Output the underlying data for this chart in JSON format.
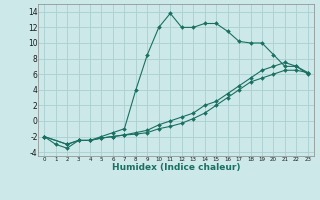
{
  "xlabel": "Humidex (Indice chaleur)",
  "bg_color": "#cce8e8",
  "line_color": "#1a7060",
  "grid_color": "#aad0d0",
  "xlim": [
    -0.5,
    23.5
  ],
  "ylim": [
    -4.5,
    15
  ],
  "xticks": [
    0,
    1,
    2,
    3,
    4,
    5,
    6,
    7,
    8,
    9,
    10,
    11,
    12,
    13,
    14,
    15,
    16,
    17,
    18,
    19,
    20,
    21,
    22,
    23
  ],
  "yticks": [
    -4,
    -2,
    0,
    2,
    4,
    6,
    8,
    10,
    12,
    14
  ],
  "line1_x": [
    0,
    1,
    2,
    3,
    4,
    5,
    6,
    7,
    8,
    9,
    10,
    11,
    12,
    13,
    14,
    15,
    16,
    17,
    18,
    19,
    20,
    21,
    22,
    23
  ],
  "line1_y": [
    -2,
    -3,
    -3.5,
    -2.5,
    -2.5,
    -2,
    -1.5,
    -1,
    4,
    8.5,
    12,
    13.8,
    12,
    12,
    12.5,
    12.5,
    11.5,
    10.2,
    10,
    10,
    8.5,
    7,
    7,
    6
  ],
  "line2_x": [
    0,
    2,
    3,
    4,
    5,
    6,
    7,
    8,
    9,
    10,
    11,
    12,
    13,
    14,
    15,
    16,
    17,
    18,
    19,
    20,
    21,
    22,
    23
  ],
  "line2_y": [
    -2,
    -3,
    -2.5,
    -2.5,
    -2.2,
    -2,
    -1.8,
    -1.7,
    -1.5,
    -1.0,
    -0.7,
    -0.3,
    0.3,
    1,
    2,
    3,
    4,
    5,
    5.5,
    6,
    6.5,
    6.5,
    6.2
  ],
  "line3_x": [
    0,
    2,
    3,
    4,
    5,
    6,
    7,
    8,
    9,
    10,
    11,
    12,
    13,
    14,
    15,
    16,
    17,
    18,
    19,
    20,
    21,
    22,
    23
  ],
  "line3_y": [
    -2,
    -3,
    -2.5,
    -2.5,
    -2.2,
    -2,
    -1.8,
    -1.5,
    -1.2,
    -0.5,
    0,
    0.5,
    1,
    2,
    2.5,
    3.5,
    4.5,
    5.5,
    6.5,
    7,
    7.5,
    7,
    6.2
  ]
}
